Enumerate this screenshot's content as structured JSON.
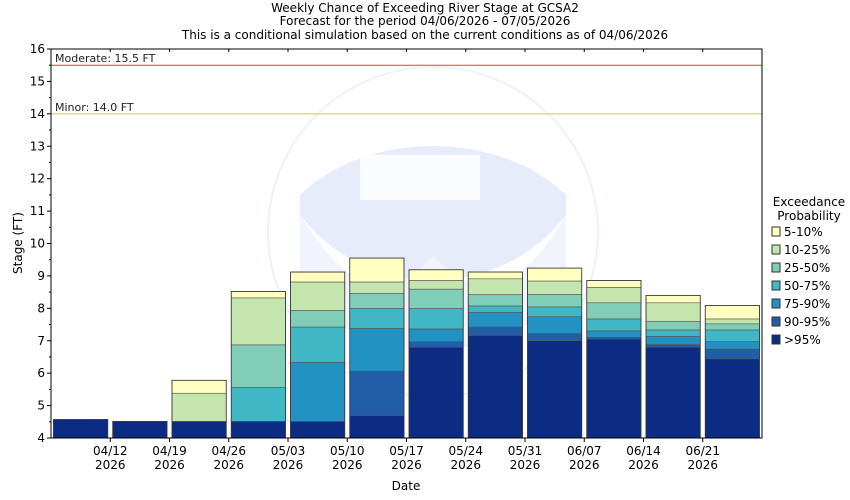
{
  "chart_data": {
    "type": "bar",
    "title_lines": [
      "Weekly Chance of Exceeding River Stage at GCSA2",
      "Forecast for the period 04/06/2026 - 07/05/2026",
      "This is a conditional simulation based on the current conditions as of 04/06/2026"
    ],
    "xlabel": "Date",
    "ylabel": "Stage (FT)",
    "ylim": [
      4,
      16
    ],
    "yticks": [
      "4",
      "5",
      "6",
      "7",
      "8",
      "9",
      "10",
      "11",
      "12",
      "13",
      "14",
      "15",
      "16"
    ],
    "xtick_labels": [
      [
        "04/12",
        "2026"
      ],
      [
        "04/19",
        "2026"
      ],
      [
        "04/26",
        "2026"
      ],
      [
        "05/03",
        "2026"
      ],
      [
        "05/10",
        "2026"
      ],
      [
        "05/17",
        "2026"
      ],
      [
        "05/24",
        "2026"
      ],
      [
        "05/31",
        "2026"
      ],
      [
        "06/07",
        "2026"
      ],
      [
        "06/14",
        "2026"
      ],
      [
        "06/21",
        "2026"
      ]
    ],
    "weeks": 12,
    "grid": false,
    "thresholds": [
      {
        "label": "Moderate: 15.5 FT",
        "value": 15.5,
        "color": "#d94040"
      },
      {
        "label": "Minor: 14.0 FT",
        "value": 14.0,
        "color": "#d8c84a"
      }
    ],
    "legend": {
      "title_lines": [
        "Exceedance",
        "Probability"
      ],
      "placement": "right",
      "items": [
        {
          "label": "5-10%",
          "color": "#ffffc0"
        },
        {
          "label": "10-25%",
          "color": "#c4e6ae"
        },
        {
          "label": "25-50%",
          "color": "#80cdb8"
        },
        {
          "label": "50-75%",
          "color": "#41b6c4"
        },
        {
          "label": "75-90%",
          "color": "#2292c2"
        },
        {
          "label": "90-95%",
          "color": "#225ea8"
        },
        {
          "label": ">95%",
          "color": "#0c2c84"
        }
      ]
    },
    "series_order_note_levels": [
      "5-10%",
      "10-25%",
      "25-50%",
      "50-75%",
      "75-90%",
      "90-95%",
      ">95%"
    ],
    "values": [
      [
        4.57,
        4.57,
        4.57,
        4.57,
        4.57,
        4.57,
        4.57
      ],
      [
        4.51,
        4.51,
        4.51,
        4.51,
        4.51,
        4.51,
        4.51
      ],
      [
        5.78,
        5.38,
        4.51,
        4.51,
        4.51,
        4.51,
        4.51
      ],
      [
        8.52,
        8.32,
        6.87,
        5.56,
        4.51,
        4.51,
        4.51
      ],
      [
        9.12,
        8.81,
        7.93,
        7.42,
        6.33,
        4.51,
        4.51
      ],
      [
        9.55,
        8.81,
        8.46,
        8.0,
        7.38,
        6.06,
        4.69
      ],
      [
        9.19,
        8.86,
        8.59,
        7.99,
        7.36,
        6.97,
        6.8
      ],
      [
        9.12,
        8.91,
        8.42,
        8.07,
        7.87,
        7.42,
        7.16
      ],
      [
        9.24,
        8.84,
        8.43,
        8.04,
        7.74,
        7.22,
        7.0
      ],
      [
        8.86,
        8.64,
        8.17,
        7.67,
        7.3,
        7.1,
        7.05
      ],
      [
        8.4,
        8.17,
        7.59,
        7.33,
        7.13,
        6.88,
        6.8
      ],
      [
        8.09,
        7.67,
        7.52,
        7.33,
        6.97,
        6.74,
        6.44
      ]
    ]
  }
}
